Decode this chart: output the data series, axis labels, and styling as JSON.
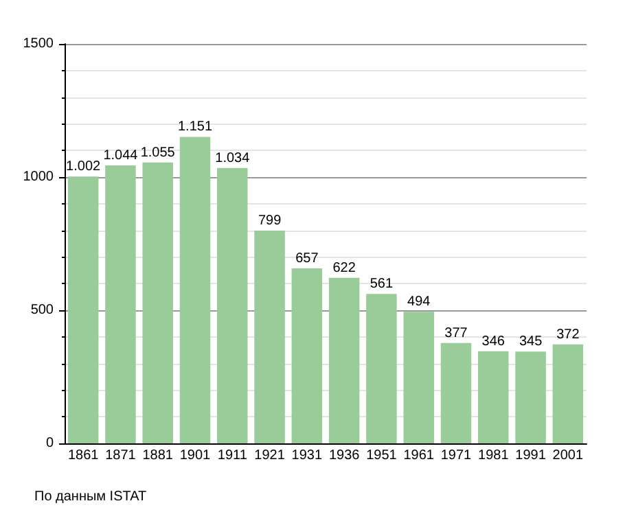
{
  "chart_data": {
    "type": "bar",
    "categories": [
      "1861",
      "1871",
      "1881",
      "1901",
      "1911",
      "1921",
      "1931",
      "1936",
      "1951",
      "1961",
      "1971",
      "1981",
      "1991",
      "2001"
    ],
    "values": [
      1002,
      1044,
      1055,
      1151,
      1034,
      799,
      657,
      622,
      561,
      494,
      377,
      346,
      345,
      372
    ],
    "value_labels": [
      "1.002",
      "1.044",
      "1.055",
      "1.151",
      "1.034",
      "799",
      "657",
      "622",
      "561",
      "494",
      "377",
      "346",
      "345",
      "372"
    ],
    "color": "#99cc99",
    "ylim": [
      0,
      1500
    ],
    "yticks": [
      0,
      500,
      1000,
      1500
    ],
    "grid": "y",
    "annotations": [
      "По данным ISTAT"
    ]
  }
}
